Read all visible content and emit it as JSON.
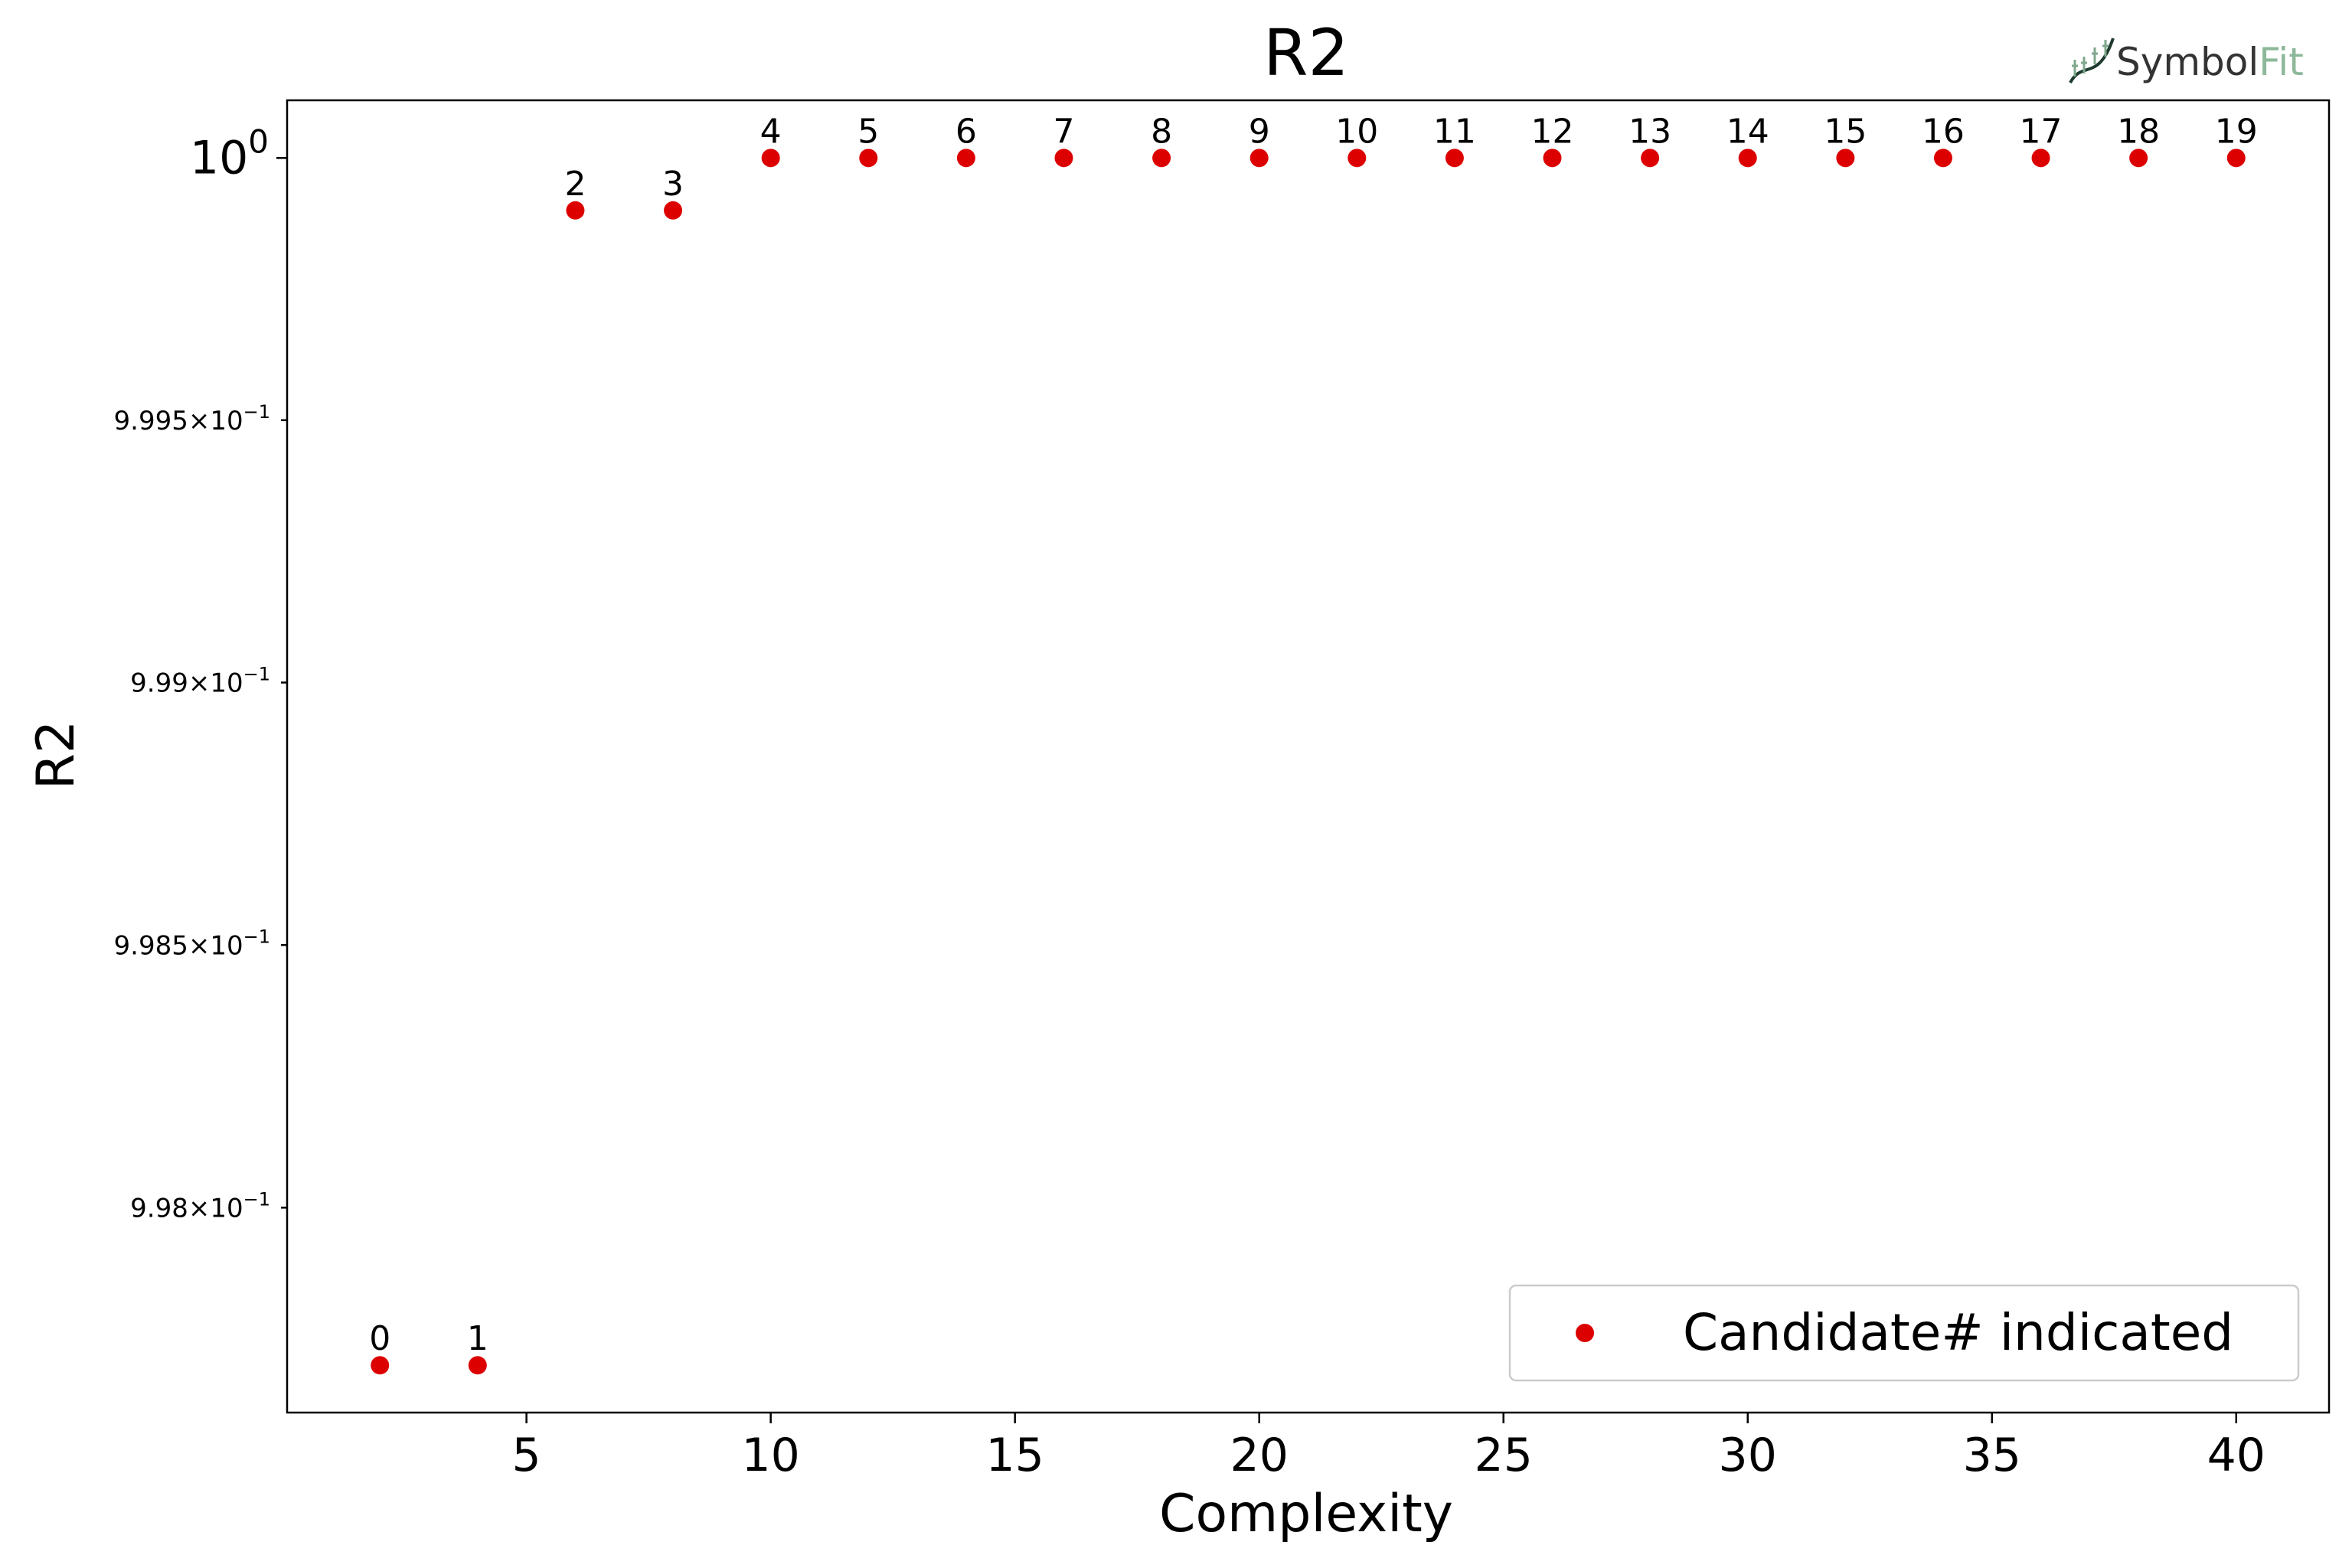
{
  "logo": {
    "text_dark": "Symbol",
    "text_light": "Fit"
  },
  "chart_data": {
    "type": "scatter",
    "title": "R2",
    "xlabel": "Complexity",
    "ylabel": "R2",
    "yscale": "log",
    "xlim": [
      0.1,
      41.9
    ],
    "ylim": [
      0.99761,
      1.00011
    ],
    "x_ticks": [
      5,
      10,
      15,
      20,
      25,
      30,
      35,
      40
    ],
    "x_tick_labels": [
      "5",
      "10",
      "15",
      "20",
      "25",
      "30",
      "35",
      "40"
    ],
    "y_ticks": [
      {
        "value": 1.0,
        "mantissa": "10",
        "exp": "0",
        "major": true
      },
      {
        "value": 0.9995,
        "mantissa": "9.995×10",
        "exp": "−1",
        "major": false
      },
      {
        "value": 0.999,
        "mantissa": "9.99×10",
        "exp": "−1",
        "major": false
      },
      {
        "value": 0.9985,
        "mantissa": "9.985×10",
        "exp": "−1",
        "major": false
      },
      {
        "value": 0.998,
        "mantissa": "9.98×10",
        "exp": "−1",
        "major": false
      }
    ],
    "series": [
      {
        "name": "Candidate# indicated",
        "color": "#dd0000",
        "points": [
          {
            "x": 2,
            "y": 0.9977,
            "label": "0"
          },
          {
            "x": 4,
            "y": 0.9977,
            "label": "1"
          },
          {
            "x": 6,
            "y": 0.9999,
            "label": "2"
          },
          {
            "x": 8,
            "y": 0.9999,
            "label": "3"
          },
          {
            "x": 10,
            "y": 1.0,
            "label": "4"
          },
          {
            "x": 12,
            "y": 1.0,
            "label": "5"
          },
          {
            "x": 14,
            "y": 1.0,
            "label": "6"
          },
          {
            "x": 16,
            "y": 1.0,
            "label": "7"
          },
          {
            "x": 18,
            "y": 1.0,
            "label": "8"
          },
          {
            "x": 20,
            "y": 1.0,
            "label": "9"
          },
          {
            "x": 22,
            "y": 1.0,
            "label": "10"
          },
          {
            "x": 24,
            "y": 1.0,
            "label": "11"
          },
          {
            "x": 26,
            "y": 1.0,
            "label": "12"
          },
          {
            "x": 28,
            "y": 1.0,
            "label": "13"
          },
          {
            "x": 30,
            "y": 1.0,
            "label": "14"
          },
          {
            "x": 32,
            "y": 1.0,
            "label": "15"
          },
          {
            "x": 34,
            "y": 1.0,
            "label": "16"
          },
          {
            "x": 36,
            "y": 1.0,
            "label": "17"
          },
          {
            "x": 38,
            "y": 1.0,
            "label": "18"
          },
          {
            "x": 40,
            "y": 1.0,
            "label": "19"
          }
        ]
      }
    ],
    "legend": {
      "position": "lower-right",
      "label": "Candidate# indicated"
    },
    "grid": false
  }
}
